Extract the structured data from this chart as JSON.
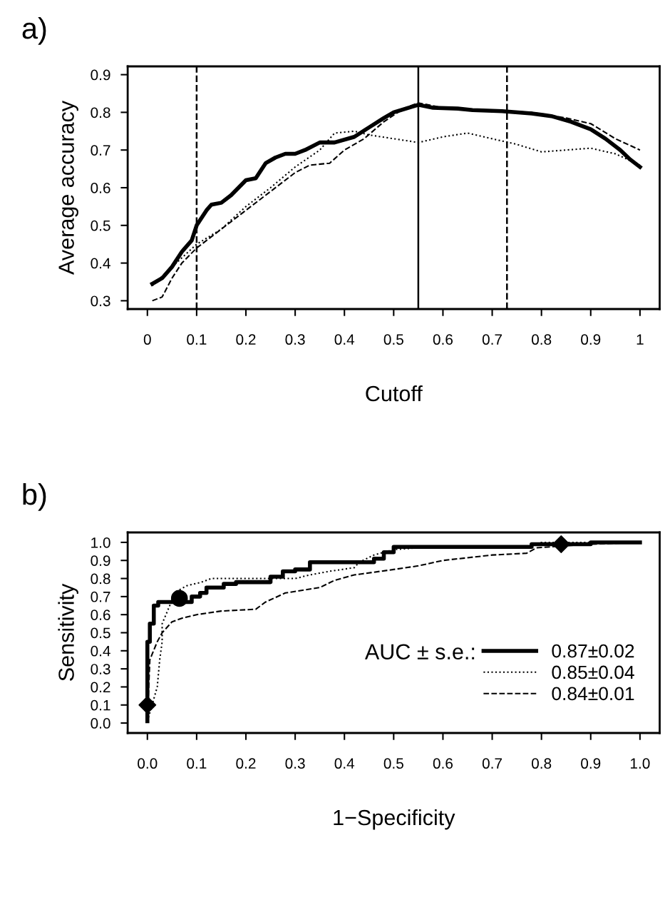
{
  "chart_data": [
    {
      "type": "line",
      "title": "a)",
      "xlabel": "Cutoff",
      "ylabel": "Average accuracy",
      "xlim": [
        -0.04,
        1.04
      ],
      "ylim": [
        0.278,
        0.922
      ],
      "xticks": [
        0,
        0.1,
        0.2,
        0.3,
        0.4,
        0.5,
        0.6,
        0.7,
        0.8,
        0.9,
        1
      ],
      "yticks": [
        0.3,
        0.4,
        0.5,
        0.6,
        0.7,
        0.8,
        0.9
      ],
      "grid": false,
      "legend": false,
      "series": [
        {
          "color": "#000000",
          "line_style": "solid",
          "x": [
            0.01,
            0.03,
            0.05,
            0.07,
            0.09,
            0.1,
            0.12,
            0.13,
            0.15,
            0.17,
            0.2,
            0.22,
            0.24,
            0.26,
            0.28,
            0.3,
            0.32,
            0.35,
            0.38,
            0.42,
            0.45,
            0.48,
            0.5,
            0.55,
            0.58,
            0.63,
            0.66,
            0.72,
            0.78,
            0.82,
            0.86,
            0.9,
            0.93,
            0.96,
            0.98,
            1.0
          ],
          "values": [
            0.345,
            0.36,
            0.39,
            0.43,
            0.46,
            0.5,
            0.54,
            0.555,
            0.56,
            0.58,
            0.62,
            0.625,
            0.665,
            0.68,
            0.69,
            0.69,
            0.7,
            0.72,
            0.72,
            0.735,
            0.76,
            0.785,
            0.8,
            0.82,
            0.812,
            0.81,
            0.806,
            0.803,
            0.797,
            0.79,
            0.775,
            0.755,
            0.73,
            0.7,
            0.675,
            0.655
          ]
        },
        {
          "color": "#000000",
          "line_style": "dotted",
          "x": [
            0.01,
            0.05,
            0.1,
            0.15,
            0.2,
            0.25,
            0.3,
            0.35,
            0.38,
            0.42,
            0.45,
            0.5,
            0.55,
            0.6,
            0.65,
            0.7,
            0.75,
            0.8,
            0.85,
            0.9,
            0.95,
            1.0
          ],
          "values": [
            0.34,
            0.39,
            0.45,
            0.49,
            0.55,
            0.6,
            0.655,
            0.7,
            0.745,
            0.75,
            0.74,
            0.73,
            0.72,
            0.735,
            0.745,
            0.73,
            0.715,
            0.695,
            0.7,
            0.705,
            0.69,
            0.66
          ]
        },
        {
          "color": "#000000",
          "line_style": "dashed",
          "x": [
            0.01,
            0.03,
            0.05,
            0.07,
            0.1,
            0.13,
            0.16,
            0.2,
            0.25,
            0.3,
            0.33,
            0.37,
            0.4,
            0.44,
            0.48,
            0.52,
            0.55,
            0.6,
            0.7,
            0.78,
            0.85,
            0.9,
            0.95,
            1.0
          ],
          "values": [
            0.3,
            0.31,
            0.36,
            0.4,
            0.44,
            0.47,
            0.5,
            0.54,
            0.59,
            0.64,
            0.66,
            0.665,
            0.7,
            0.73,
            0.775,
            0.81,
            0.825,
            0.812,
            0.805,
            0.8,
            0.785,
            0.77,
            0.73,
            0.7
          ]
        }
      ],
      "ref_lines": [
        {
          "axis": "x",
          "value": 0.1,
          "line_style": "dashed"
        },
        {
          "axis": "x",
          "value": 0.55,
          "line_style": "solid"
        },
        {
          "axis": "x",
          "value": 0.73,
          "line_style": "dashed"
        }
      ]
    },
    {
      "type": "line",
      "title": "b)",
      "xlabel": "1−Specificity",
      "ylabel": "Sensitivity",
      "xlim": [
        -0.04,
        1.04
      ],
      "ylim": [
        -0.055,
        1.055
      ],
      "xticks": [
        {
          "value": 0,
          "label": "0.0"
        },
        0.1,
        0.2,
        0.3,
        0.4,
        0.5,
        0.6,
        0.7,
        0.8,
        0.9,
        {
          "value": 1,
          "label": "1.0"
        }
      ],
      "yticks": [
        {
          "value": 0,
          "label": "0.0"
        },
        0.1,
        0.2,
        0.3,
        0.4,
        0.5,
        0.6,
        0.7,
        0.8,
        0.9,
        {
          "value": 1,
          "label": "1.0"
        }
      ],
      "grid": false,
      "legend": "bottom right",
      "legend_title": "AUC ± s.e.:",
      "series": [
        {
          "name": "0.87±0.02",
          "color": "#000000",
          "line_style": "solid",
          "x": [
            0,
            0,
            0.005,
            0.005,
            0.013,
            0.013,
            0.022,
            0.022,
            0.065,
            0.09,
            0.09,
            0.107,
            0.107,
            0.12,
            0.12,
            0.155,
            0.155,
            0.18,
            0.18,
            0.25,
            0.25,
            0.275,
            0.275,
            0.3,
            0.3,
            0.33,
            0.33,
            0.38,
            0.38,
            0.46,
            0.46,
            0.48,
            0.48,
            0.5,
            0.5,
            0.51,
            0.51,
            0.78,
            0.78,
            0.9,
            0.9,
            1.0
          ],
          "values": [
            0.01,
            0.45,
            0.45,
            0.55,
            0.55,
            0.65,
            0.65,
            0.67,
            0.67,
            0.67,
            0.7,
            0.7,
            0.72,
            0.72,
            0.75,
            0.75,
            0.77,
            0.77,
            0.78,
            0.78,
            0.81,
            0.81,
            0.84,
            0.84,
            0.85,
            0.85,
            0.89,
            0.89,
            0.89,
            0.89,
            0.91,
            0.91,
            0.945,
            0.945,
            0.975,
            0.975,
            0.975,
            0.975,
            0.99,
            0.99,
            1.0,
            1.0
          ]
        },
        {
          "name": "0.85±0.04",
          "color": "#000000",
          "line_style": "dotted",
          "x": [
            0.0,
            0.02,
            0.025,
            0.03,
            0.03,
            0.05,
            0.06,
            0.08,
            0.11,
            0.13,
            0.2,
            0.25,
            0.3,
            0.33,
            0.37,
            0.42,
            0.43,
            0.46,
            0.5,
            0.55,
            0.6,
            0.7,
            0.78,
            0.8,
            0.85,
            1.0
          ],
          "values": [
            0.01,
            0.2,
            0.35,
            0.45,
            0.55,
            0.68,
            0.73,
            0.76,
            0.78,
            0.8,
            0.8,
            0.8,
            0.8,
            0.82,
            0.84,
            0.86,
            0.89,
            0.93,
            0.96,
            0.97,
            0.97,
            0.97,
            0.98,
            1.0,
            1.0,
            1.0
          ]
        },
        {
          "name": "0.84±0.01",
          "color": "#000000",
          "line_style": "dashed",
          "x": [
            0.0,
            0.005,
            0.02,
            0.03,
            0.05,
            0.07,
            0.1,
            0.15,
            0.22,
            0.24,
            0.28,
            0.35,
            0.38,
            0.42,
            0.5,
            0.55,
            0.6,
            0.7,
            0.77,
            0.79,
            0.9,
            1.0
          ],
          "values": [
            0.02,
            0.35,
            0.45,
            0.5,
            0.56,
            0.58,
            0.6,
            0.62,
            0.63,
            0.67,
            0.72,
            0.75,
            0.79,
            0.82,
            0.85,
            0.87,
            0.9,
            0.93,
            0.94,
            0.97,
            0.99,
            1.0
          ]
        },
        {
          "type": "scatter",
          "marker": "diamond",
          "color": "#000000",
          "x": [
            0,
            0.84
          ],
          "values": [
            0.1,
            0.99
          ]
        },
        {
          "type": "scatter",
          "marker": "circle",
          "color": "#000000",
          "x": [
            0.065
          ],
          "values": [
            0.69
          ]
        }
      ]
    }
  ]
}
